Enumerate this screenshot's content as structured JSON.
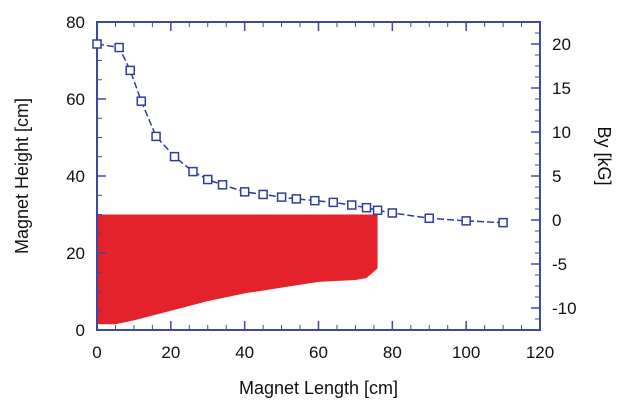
{
  "chart_data": {
    "type": "line",
    "title": "",
    "xlabel": "Magnet Length [cm]",
    "ylabel_left": "Magnet Height [cm]",
    "ylabel_right": "By [kG]",
    "xlim": [
      0,
      120
    ],
    "ylim_left": [
      0,
      80
    ],
    "ylim_right": [
      -12.5,
      22.5
    ],
    "xticks": [
      0,
      20,
      40,
      60,
      80,
      100,
      120
    ],
    "yticks_left": [
      0,
      20,
      40,
      60,
      80
    ],
    "yticks_right": [
      -10,
      -5,
      0,
      5,
      10,
      15,
      20
    ],
    "grid": false,
    "colors": {
      "magnet": "#e3222b",
      "field": "#2f3c9e",
      "axes": "#3a4aa0"
    },
    "magnet_profile": {
      "top_height": 30,
      "x": [
        0,
        5,
        10,
        20,
        30,
        40,
        50,
        60,
        70,
        73,
        76,
        76
      ],
      "bottom_height": [
        1.5,
        1.5,
        2.5,
        5,
        7.5,
        9.5,
        11,
        12.5,
        13,
        13.5,
        16,
        30
      ]
    },
    "series": [
      {
        "axis": "right",
        "x": [
          0,
          6,
          9,
          12,
          16,
          21,
          26,
          30,
          34,
          40,
          45,
          50,
          54,
          59,
          64,
          69,
          73,
          76,
          80,
          90,
          100,
          110
        ],
        "values": [
          20,
          19.6,
          17,
          13.5,
          9.5,
          7.2,
          5.5,
          4.6,
          4,
          3.2,
          2.9,
          2.6,
          2.4,
          2.2,
          2,
          1.7,
          1.4,
          1.1,
          0.8,
          0.2,
          -0.1,
          -0.3
        ]
      }
    ]
  }
}
